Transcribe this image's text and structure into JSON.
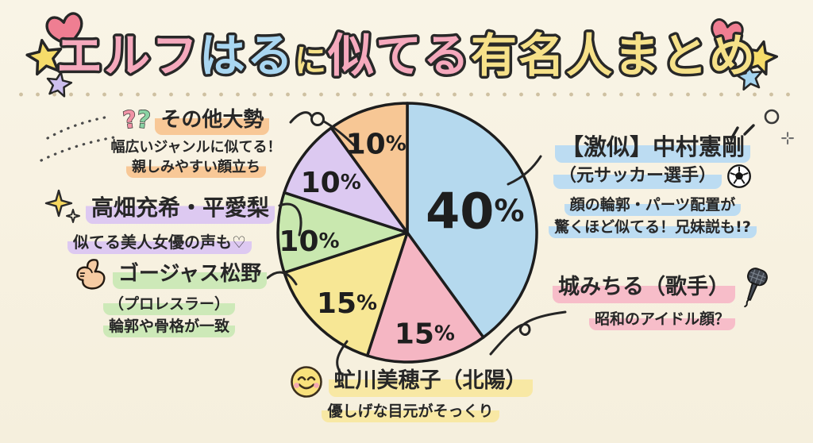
{
  "page": {
    "background_color": "#f8f3e4",
    "divider_dot_color": "#cfc1a2",
    "outline_color": "#1d1d1d"
  },
  "title": {
    "text": "エルフはるに似てる有名人まとめ",
    "segments": [
      {
        "text": "エルフ",
        "color": "#f5a9bd",
        "size": "lg"
      },
      {
        "text": "はる",
        "color": "#a9d6f1",
        "size": "lg"
      },
      {
        "text": "に",
        "color": "#f6e189",
        "size": "sm"
      },
      {
        "text": "似てる",
        "color": "#f5a9bd",
        "size": "lg"
      },
      {
        "text": "有名人まとめ",
        "color": "#f6e189",
        "size": "lg"
      }
    ],
    "decorations_left": [
      "pink-heart",
      "yellow-star",
      "purple-star"
    ],
    "decorations_right": [
      "pink-heart",
      "yellow-star",
      "blue-star"
    ]
  },
  "chart_data": {
    "type": "pie",
    "title": "エルフはるに似てる有名人まとめ",
    "direction": "clockwise",
    "start_angle_deg": 0,
    "legend_position": "callouts-around-pie",
    "slices": [
      {
        "label": "【激似】中村憲剛（元サッカー選手）",
        "value": 40,
        "pct_label": "40%",
        "color": "#b5d9ee"
      },
      {
        "label": "城みちる（歌手）",
        "value": 15,
        "pct_label": "15%",
        "color": "#f5b6c3"
      },
      {
        "label": "虻川美穂子（北陽）",
        "value": 15,
        "pct_label": "15%",
        "color": "#f7e795"
      },
      {
        "label": "ゴージャス松野（プロレスラー）",
        "value": 10,
        "pct_label": "10%",
        "color": "#c9e8af"
      },
      {
        "label": "高畑充希・平愛梨",
        "value": 10,
        "pct_label": "10%",
        "color": "#dcc9f1"
      },
      {
        "label": "その他大勢",
        "value": 10,
        "pct_label": "10%",
        "color": "#f7c795"
      }
    ]
  },
  "callouts": {
    "others": {
      "icon": "double-question-icon",
      "name": "その他大勢",
      "desc1": "幅広いジャンルに似てる！",
      "desc2": "親しみやすい顔立ち",
      "hl": "#f8c897"
    },
    "takahata": {
      "icon": "sparkle-icon",
      "name": "高畑充希・平愛梨",
      "desc1": "似てる美人女優の声も♡",
      "hl": "#ddc9f1"
    },
    "gorgeous": {
      "icon": "muscle-icon",
      "name": "ゴージャス松野",
      "sub": "（プロレスラー）",
      "desc1": "輪郭や骨格が一致",
      "hl": "#cde9b8"
    },
    "nakamura": {
      "icon": "soccer-ball-icon",
      "name": "【激似】中村憲剛",
      "sub": "（元サッカー選手）",
      "desc1": "顔の輪郭・パーツ配置が",
      "desc2": "驚くほど似てる！兄妹説も!?",
      "hl": "#bcdcf2"
    },
    "jo": {
      "icon": "microphone-icon",
      "name": "城みちる（歌手）",
      "desc1": "昭和のアイドル顔？",
      "hl": "#f7bdc9"
    },
    "abukawa": {
      "icon": "smiley-icon",
      "name": "虻川美穂子（北陽）",
      "desc1": "優しげな目元がそっくり",
      "hl": "#f8e8a4"
    }
  }
}
